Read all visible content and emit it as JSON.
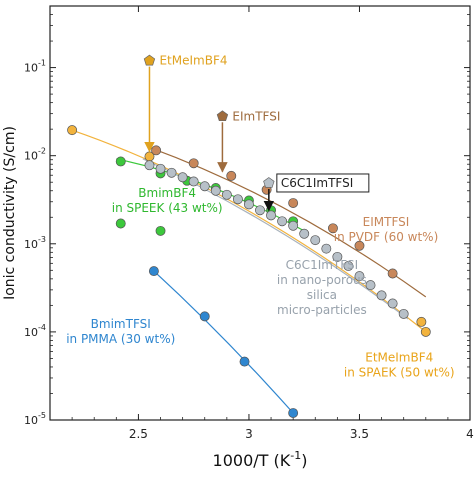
{
  "chart_data": {
    "type": "scatter",
    "xlabel": "1000/T (K",
    "xlabel_sup": "-1",
    "xlabel_close": ")",
    "ylabel": "Ionic conductivity (S/cm)",
    "xlim": [
      2.1,
      4.0
    ],
    "ylim": [
      1e-05,
      0.5
    ],
    "yscale": "log",
    "x_ticks": [
      2.5,
      3.0,
      3.5,
      4.0
    ],
    "x_tick_labels": [
      "2.5",
      "3",
      "3.5",
      "4"
    ],
    "y_ticks": [
      1e-05,
      0.0001,
      0.001,
      0.01,
      0.1
    ],
    "y_tick_labels": [
      {
        "base": "10",
        "exp": "-5"
      },
      {
        "base": "10",
        "exp": "-4"
      },
      {
        "base": "10",
        "exp": "-3"
      },
      {
        "base": "10",
        "exp": "-2"
      },
      {
        "base": "10",
        "exp": "-1"
      }
    ],
    "series": [
      {
        "key": "etmeim_spaek",
        "marker": "circle",
        "color": "#f2b33d",
        "fill": "#f2b33d",
        "points": [
          [
            2.2,
            0.0195
          ],
          [
            2.55,
            0.0098
          ],
          [
            3.78,
            0.00013
          ],
          [
            3.8,
            0.0001
          ]
        ]
      },
      {
        "key": "eimtfsi_pvdf",
        "marker": "circle",
        "color": "#c8875a",
        "fill": "#c8875a",
        "points": [
          [
            2.58,
            0.0115
          ],
          [
            2.75,
            0.0082
          ],
          [
            2.92,
            0.0059
          ],
          [
            3.08,
            0.0041
          ],
          [
            3.2,
            0.0029
          ],
          [
            3.38,
            0.0015
          ],
          [
            3.5,
            0.00095
          ],
          [
            3.65,
            0.00046
          ]
        ]
      },
      {
        "key": "bmimbf4_speek",
        "marker": "circle",
        "color": "#3cc83c",
        "fill": "#3cc83c",
        "points": [
          [
            2.42,
            0.0086
          ],
          [
            2.6,
            0.0063
          ],
          [
            2.72,
            0.0052
          ],
          [
            2.85,
            0.0043
          ],
          [
            3.0,
            0.0031
          ],
          [
            3.1,
            0.0024
          ],
          [
            3.2,
            0.0018
          ],
          [
            2.42,
            0.0017
          ],
          [
            2.6,
            0.0014
          ]
        ]
      },
      {
        "key": "c6c1imtfsi_silica",
        "marker": "circle",
        "color": "#a9b3bd",
        "fill": "#b7c0c8",
        "points": [
          [
            2.55,
            0.0078
          ],
          [
            2.6,
            0.0071
          ],
          [
            2.65,
            0.0064
          ],
          [
            2.7,
            0.0057
          ],
          [
            2.75,
            0.0051
          ],
          [
            2.8,
            0.0045
          ],
          [
            2.85,
            0.004
          ],
          [
            2.9,
            0.0036
          ],
          [
            2.95,
            0.0032
          ],
          [
            3.0,
            0.0028
          ],
          [
            3.05,
            0.0024
          ],
          [
            3.1,
            0.0021
          ],
          [
            3.15,
            0.0018
          ],
          [
            3.2,
            0.0016
          ],
          [
            3.25,
            0.0013
          ],
          [
            3.3,
            0.0011
          ],
          [
            3.35,
            0.00088
          ],
          [
            3.4,
            0.00071
          ],
          [
            3.45,
            0.00056
          ],
          [
            3.5,
            0.00043
          ],
          [
            3.55,
            0.00034
          ],
          [
            3.6,
            0.00026
          ],
          [
            3.65,
            0.00021
          ],
          [
            3.7,
            0.00016
          ]
        ]
      },
      {
        "key": "bmimtfsi_pmma",
        "marker": "circle",
        "color": "#2f86cf",
        "fill": "#2f86cf",
        "points": [
          [
            2.57,
            0.00049
          ],
          [
            2.8,
            0.00015
          ],
          [
            2.98,
            4.6e-05
          ],
          [
            3.2,
            1.2e-05
          ]
        ]
      }
    ],
    "fit_lines": [
      {
        "key": "etmeim_spaek",
        "color": "#f2b33d",
        "from": [
          2.2,
          0.0195
        ],
        "to": [
          3.8,
          0.0001
        ],
        "curv": 0.45
      },
      {
        "key": "eimtfsi_pvdf",
        "color": "#9e6b3d",
        "from": [
          2.55,
          0.0124
        ],
        "to": [
          3.8,
          0.00025
        ],
        "curv": 0.35
      },
      {
        "key": "bmimbf4_speek",
        "color": "#3cc83c",
        "from": [
          2.4,
          0.0092
        ],
        "to": [
          3.25,
          0.0014
        ],
        "curv": 0.35
      },
      {
        "key": "c6c1imtfsi_silica",
        "color": "#a9b3bd",
        "from": [
          2.52,
          0.0092
        ],
        "to": [
          3.72,
          0.00014
        ],
        "curv": 0.3
      },
      {
        "key": "bmimtfsi_pmma",
        "color": "#2f86cf",
        "from": [
          2.57,
          0.00049
        ],
        "to": [
          3.2,
          1.2e-05
        ],
        "curv": 0.2
      }
    ],
    "annotations": [
      {
        "key": "etmeimbf4_lit",
        "text": "EtMeImBF4",
        "color": "#e0a21f",
        "point": [
          2.55,
          0.12
        ],
        "marker": "pentagon",
        "arrow_to": [
          2.55,
          0.0112
        ],
        "label_dx": 10,
        "label_dy": 4
      },
      {
        "key": "eimtfsi_lit",
        "text": "EImTFSI",
        "color": "#9e6b3d",
        "point": [
          2.88,
          0.028
        ],
        "marker": "pentagon",
        "arrow_to": [
          2.88,
          0.0066
        ],
        "label_dx": 10,
        "label_dy": 4
      },
      {
        "key": "c6c1imtfsi_lit",
        "text": "C6C1ImTFSI",
        "color": "#222222",
        "point": [
          3.09,
          0.0049
        ],
        "marker": "pentagon-grey",
        "arrow_to": [
          3.09,
          0.0024
        ],
        "boxed": true,
        "label_dx": 12,
        "label_dy": 4
      }
    ],
    "series_labels": [
      {
        "key": "bmimbf4_speek_label",
        "lines": [
          "BmimBF4",
          "in SPEEK (43 wt%)"
        ],
        "color": "#2fb82f",
        "at": [
          2.63,
          0.0034
        ],
        "anchor": "middle"
      },
      {
        "key": "eimtfsi_pvdf_label",
        "lines": [
          "EIMTFSI",
          "in PVDF (60 wt%)"
        ],
        "color": "#c8875a",
        "at": [
          3.62,
          0.0016
        ],
        "anchor": "middle"
      },
      {
        "key": "c6c1imtfsi_silica_label",
        "lines": [
          "C6C1ImTFSI",
          "in nano-porous",
          "silica",
          "micro-particles"
        ],
        "color": "#98a2ac",
        "at": [
          3.33,
          0.00052
        ],
        "anchor": "middle"
      },
      {
        "key": "etmeimbf4_spaek_label",
        "lines": [
          "EtMeImBF4",
          "in SPAEK (50 wt%)"
        ],
        "color": "#e9a41a",
        "at": [
          3.68,
          4.6e-05
        ],
        "anchor": "middle"
      },
      {
        "key": "bmimtfsi_pmma_label",
        "lines": [
          "BmimTFSI",
          "in PMMA (30 wt%)"
        ],
        "color": "#2f86cf",
        "at": [
          2.42,
          0.00011
        ],
        "anchor": "middle"
      }
    ]
  }
}
